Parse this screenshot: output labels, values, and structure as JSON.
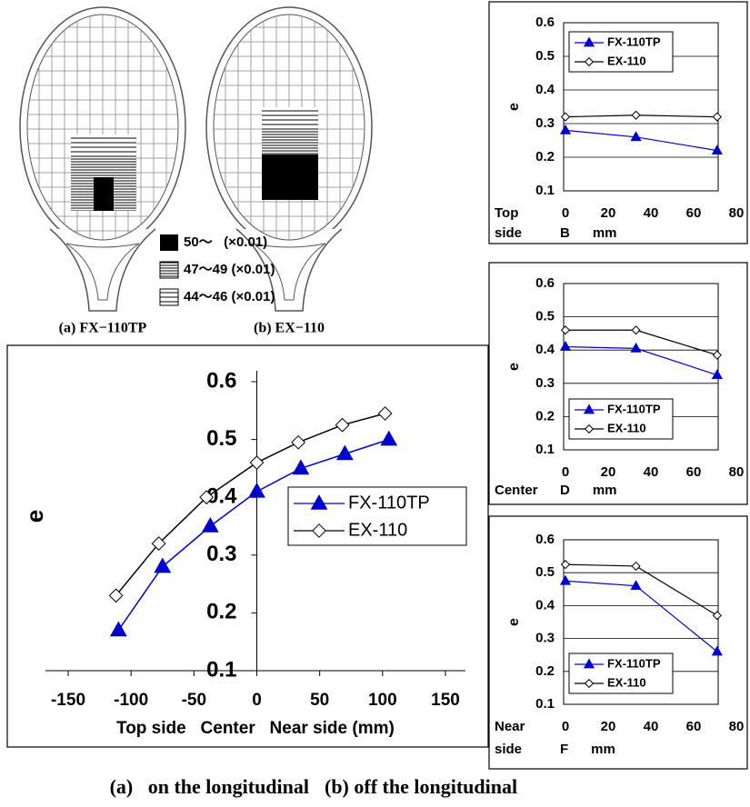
{
  "rackets": [
    {
      "label": "(a) FX−110TP"
    },
    {
      "label": "(b) EX−110"
    }
  ],
  "racket_legend": [
    "50～   (×0.01)",
    "47～49 (×0.01)",
    "44～46 (×0.01)"
  ],
  "chart_data": [
    {
      "type": "line",
      "y_label": "e",
      "x_label": "Top side   Center   Near side (mm)",
      "xlim": [
        -150,
        150
      ],
      "ylim": [
        0.1,
        0.6
      ],
      "xticks": [
        -150,
        -100,
        -50,
        0,
        50,
        100,
        150
      ],
      "yticks": [
        0.1,
        0.2,
        0.3,
        0.4,
        0.5,
        0.6
      ],
      "grid": false,
      "legend": "lower right",
      "series": [
        {
          "name": "FX-110TP",
          "color": "#0000cc",
          "marker": "triangle",
          "x": [
            -110,
            -75,
            -37,
            0,
            35,
            70,
            105
          ],
          "values": [
            0.17,
            0.28,
            0.35,
            0.41,
            0.45,
            0.475,
            0.5
          ]
        },
        {
          "name": "EX-110",
          "color": "#000000",
          "marker": "diamond",
          "x": [
            -112,
            -78,
            -40,
            0,
            33,
            68,
            102
          ],
          "values": [
            0.23,
            0.32,
            0.4,
            0.46,
            0.495,
            0.525,
            0.545
          ]
        }
      ]
    },
    {
      "type": "line",
      "y_label": "e",
      "position_label": [
        "Top",
        "side"
      ],
      "x_label": "B      mm",
      "xlim": [
        0,
        80
      ],
      "ylim": [
        0.1,
        0.6
      ],
      "xticks": [
        0,
        20,
        40,
        60,
        80
      ],
      "yticks": [
        0.1,
        0.2,
        0.3,
        0.4,
        0.5,
        0.6
      ],
      "grid": true,
      "legend": "upper left",
      "series": [
        {
          "name": "FX-110TP",
          "color": "#0000cc",
          "marker": "triangle",
          "x": [
            0,
            33,
            71
          ],
          "values": [
            0.28,
            0.26,
            0.22
          ]
        },
        {
          "name": "EX-110",
          "color": "#000000",
          "marker": "diamond",
          "x": [
            0,
            33,
            71
          ],
          "values": [
            0.32,
            0.325,
            0.32
          ]
        }
      ]
    },
    {
      "type": "line",
      "y_label": "e",
      "position_label": [
        "Center"
      ],
      "x_label": "D      mm",
      "xlim": [
        0,
        80
      ],
      "ylim": [
        0.1,
        0.6
      ],
      "xticks": [
        0,
        20,
        40,
        60,
        80
      ],
      "yticks": [
        0.1,
        0.2,
        0.3,
        0.4,
        0.5,
        0.6
      ],
      "grid": true,
      "legend": "lower left",
      "series": [
        {
          "name": "FX-110TP",
          "color": "#0000cc",
          "marker": "triangle",
          "x": [
            0,
            33,
            71
          ],
          "values": [
            0.41,
            0.405,
            0.325
          ]
        },
        {
          "name": "EX-110",
          "color": "#000000",
          "marker": "diamond",
          "x": [
            0,
            33,
            71
          ],
          "values": [
            0.46,
            0.46,
            0.385
          ]
        }
      ]
    },
    {
      "type": "line",
      "y_label": "e",
      "position_label": [
        "Near",
        "side"
      ],
      "x_label": "F      mm",
      "xlim": [
        0,
        80
      ],
      "ylim": [
        0.1,
        0.6
      ],
      "xticks": [
        0,
        20,
        40,
        60,
        80
      ],
      "yticks": [
        0.1,
        0.2,
        0.3,
        0.4,
        0.5,
        0.6
      ],
      "grid": true,
      "legend": "lower left",
      "series": [
        {
          "name": "FX-110TP",
          "color": "#0000cc",
          "marker": "triangle",
          "x": [
            0,
            33,
            71
          ],
          "values": [
            0.475,
            0.46,
            0.26
          ]
        },
        {
          "name": "EX-110",
          "color": "#000000",
          "marker": "diamond",
          "x": [
            0,
            33,
            71
          ],
          "values": [
            0.525,
            0.52,
            0.37
          ]
        }
      ]
    }
  ],
  "caption": [
    "(a)   on the longitudinal",
    "(b) off the longitudinal"
  ]
}
